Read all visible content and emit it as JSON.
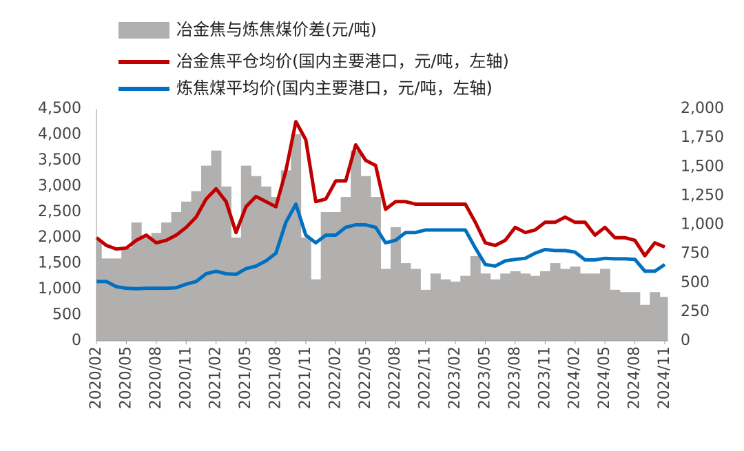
{
  "chart_data": {
    "type": "bar-line",
    "categories": [
      "2020/02",
      null,
      null,
      "2020/05",
      null,
      null,
      "2020/08",
      null,
      null,
      "2020/11",
      null,
      null,
      "2021/02",
      null,
      null,
      "2021/05",
      null,
      null,
      "2021/08",
      null,
      null,
      "2021/11",
      null,
      null,
      "2022/02",
      null,
      null,
      "2022/05",
      null,
      null,
      "2022/08",
      null,
      null,
      "2022/11",
      null,
      null,
      "2023/02",
      null,
      null,
      "2023/05",
      null,
      null,
      "2023/08",
      null,
      null,
      "2023/11",
      null,
      null,
      "2024/02",
      null,
      null,
      "2024/05",
      null,
      null,
      "2024/08",
      null,
      null,
      "2024/11"
    ],
    "series": [
      {
        "name": "冶金焦与炼焦煤价差(元/吨)",
        "type": "bar",
        "axis": "y2",
        "color": "#b2afaf",
        "values": [
          870,
          710,
          710,
          800,
          1020,
          890,
          930,
          1020,
          1110,
          1200,
          1290,
          1510,
          1640,
          1330,
          890,
          1510,
          1420,
          1330,
          1240,
          1470,
          1780,
          890,
          530,
          1110,
          1110,
          1240,
          1640,
          1420,
          1240,
          620,
          980,
          670,
          620,
          440,
          580,
          530,
          510,
          560,
          730,
          580,
          530,
          580,
          600,
          580,
          560,
          600,
          670,
          620,
          640,
          580,
          580,
          620,
          440,
          420,
          420,
          310,
          420,
          380
        ]
      },
      {
        "name": "冶金焦平仓均价(国内主要港口，元/吨，左轴)",
        "type": "line",
        "color": "#c00000",
        "values": [
          2000,
          1850,
          1780,
          1800,
          1950,
          2050,
          1900,
          1950,
          2050,
          2200,
          2400,
          2750,
          2950,
          2700,
          2100,
          2600,
          2800,
          2700,
          2600,
          3300,
          4250,
          3900,
          2700,
          2750,
          3100,
          3100,
          3800,
          3500,
          3400,
          2550,
          2700,
          2700,
          2650,
          2650,
          2650,
          2650,
          2650,
          2650,
          2300,
          1900,
          1850,
          1950,
          2200,
          2100,
          2150,
          2300,
          2300,
          2400,
          2300,
          2300,
          2050,
          2200,
          2000,
          2000,
          1950,
          1650,
          1900,
          1820
        ]
      },
      {
        "name": "炼焦煤平均价(国内主要港口，元/吨，左轴)",
        "type": "line",
        "color": "#0070c0",
        "values": [
          1150,
          1150,
          1050,
          1020,
          1010,
          1020,
          1020,
          1020,
          1030,
          1100,
          1150,
          1300,
          1350,
          1300,
          1290,
          1400,
          1450,
          1550,
          1700,
          2300,
          2650,
          2050,
          1900,
          2050,
          2050,
          2200,
          2250,
          2250,
          2200,
          1900,
          1950,
          2100,
          2100,
          2150,
          2150,
          2150,
          2150,
          2150,
          1800,
          1480,
          1450,
          1550,
          1580,
          1600,
          1700,
          1770,
          1750,
          1750,
          1720,
          1570,
          1570,
          1600,
          1590,
          1590,
          1580,
          1350,
          1350,
          1480
        ]
      }
    ],
    "ylim": [
      0,
      4500
    ],
    "yticks": [
      0,
      500,
      {
        "value": 1000,
        "label": "1,000"
      },
      {
        "value": 1500,
        "label": "1,500"
      },
      {
        "value": 2000,
        "label": "2,000"
      },
      {
        "value": 2500,
        "label": "2,500"
      },
      {
        "value": 3000,
        "label": "3,000"
      },
      {
        "value": 3500,
        "label": "3,500"
      },
      {
        "value": 4000,
        "label": "4,000"
      },
      {
        "value": 4500,
        "label": "4,500"
      }
    ],
    "y2lim": [
      0,
      2000
    ],
    "y2ticks": [
      0,
      250,
      500,
      750,
      {
        "value": 1000,
        "label": "1,000"
      },
      {
        "value": 1250,
        "label": "1,250"
      },
      {
        "value": 1500,
        "label": "1,500"
      },
      {
        "value": 1750,
        "label": "1,750"
      },
      {
        "value": 2000,
        "label": "2,000"
      }
    ]
  }
}
